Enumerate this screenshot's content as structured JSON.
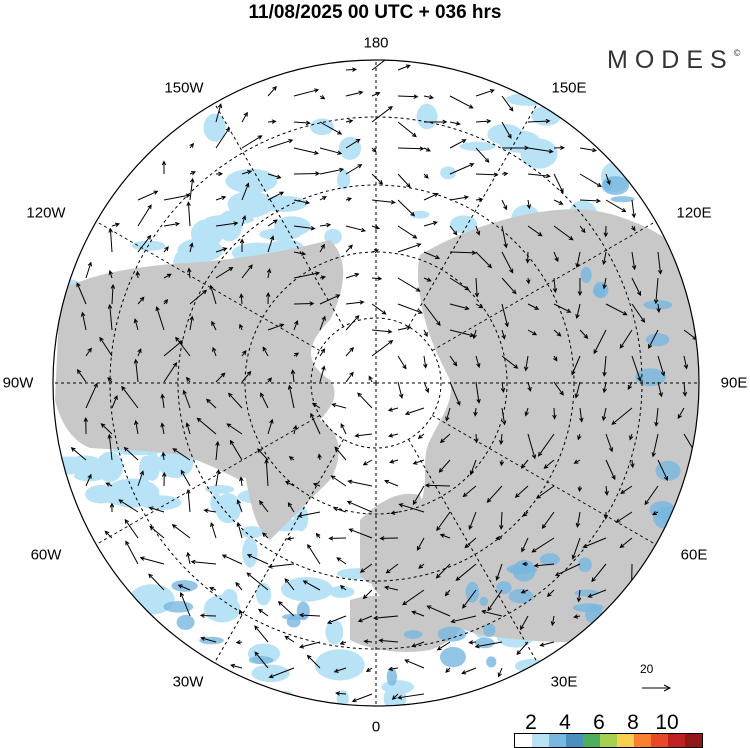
{
  "header": {
    "title": "11/08/2025  00 UTC  + 036 hrs"
  },
  "logo": {
    "text": "MODES",
    "mark": "©"
  },
  "map": {
    "projection": "north-polar-stereographic",
    "longitude_labels": {
      "lon_180": "180",
      "lon_0": "0",
      "lon_90w": "90W",
      "lon_90e": "90E",
      "lon_150w": "150W",
      "lon_150e": "150E",
      "lon_120w": "120W",
      "lon_120e": "120E",
      "lon_60w": "60W",
      "lon_60e": "60E",
      "lon_30w": "30W",
      "lon_30e": "30E"
    },
    "land_color": "#c8c8c8",
    "ocean_color": "#ffffff"
  },
  "reference_vector": {
    "label": "20"
  },
  "colorbar": {
    "tick_labels": [
      "2",
      "4",
      "6",
      "8",
      "10"
    ],
    "colors": [
      "#ffffff",
      "#b8e2f6",
      "#78b8e0",
      "#4a8fbe",
      "#4aae5e",
      "#a6d050",
      "#f8d050",
      "#f88030",
      "#e84828",
      "#c02020",
      "#901818"
    ]
  }
}
